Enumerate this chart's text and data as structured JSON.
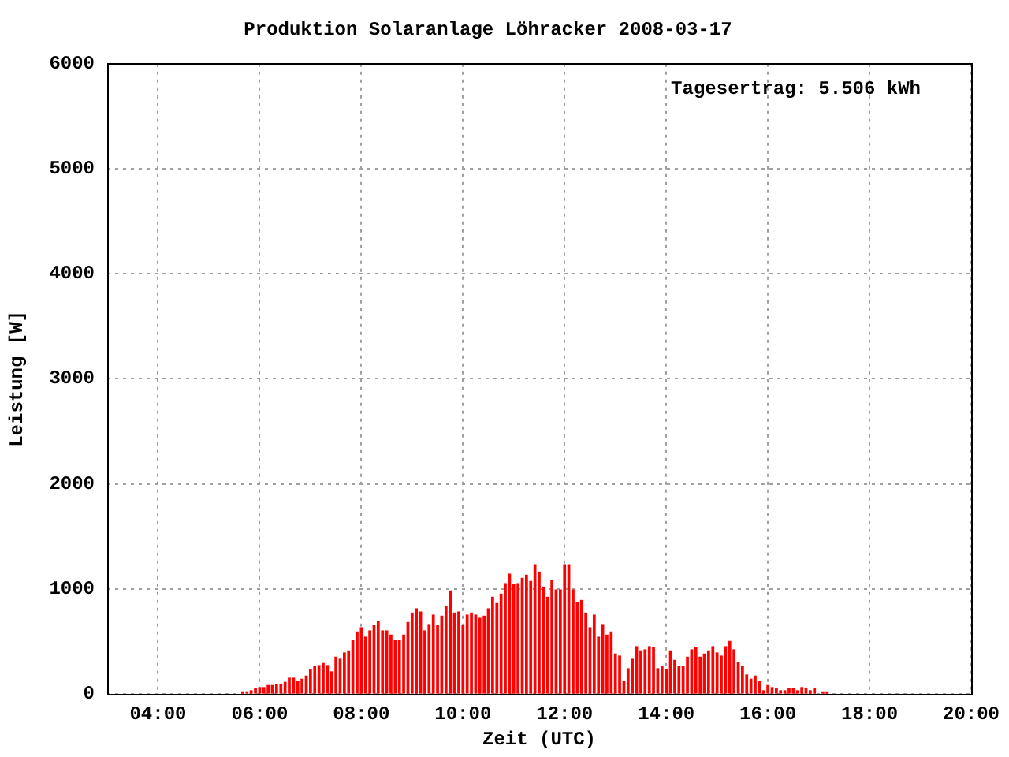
{
  "chart_data": {
    "type": "bar",
    "title": "Produktion Solaranlage Löhracker 2008-03-17",
    "xlabel": "Zeit (UTC)",
    "ylabel": "Leistung [W]",
    "annotations": [
      "Tagesertrag: 5.506 kWh"
    ],
    "x": [
      5.667,
      5.75,
      5.833,
      5.917,
      6,
      6.083,
      6.167,
      6.25,
      6.333,
      6.417,
      6.5,
      6.583,
      6.667,
      6.75,
      6.833,
      6.917,
      7,
      7.083,
      7.167,
      7.25,
      7.333,
      7.417,
      7.5,
      7.583,
      7.667,
      7.75,
      7.833,
      7.917,
      8,
      8.083,
      8.167,
      8.25,
      8.333,
      8.417,
      8.5,
      8.583,
      8.667,
      8.75,
      8.833,
      8.917,
      9,
      9.083,
      9.167,
      9.25,
      9.333,
      9.417,
      9.5,
      9.583,
      9.667,
      9.75,
      9.833,
      9.917,
      10,
      10.083,
      10.167,
      10.25,
      10.333,
      10.417,
      10.5,
      10.583,
      10.667,
      10.75,
      10.833,
      10.917,
      11,
      11.083,
      11.167,
      11.25,
      11.333,
      11.417,
      11.5,
      11.583,
      11.667,
      11.75,
      11.833,
      11.917,
      12,
      12.083,
      12.167,
      12.25,
      12.333,
      12.417,
      12.5,
      12.583,
      12.667,
      12.75,
      12.833,
      12.917,
      13,
      13.083,
      13.167,
      13.25,
      13.333,
      13.417,
      13.5,
      13.583,
      13.667,
      13.75,
      13.833,
      13.917,
      14,
      14.083,
      14.167,
      14.25,
      14.333,
      14.417,
      14.5,
      14.583,
      14.667,
      14.75,
      14.833,
      14.917,
      15,
      15.083,
      15.167,
      15.25,
      15.333,
      15.417,
      15.5,
      15.583,
      15.667,
      15.75,
      15.833,
      15.917,
      16,
      16.083,
      16.167,
      16.25,
      16.333,
      16.417,
      16.5,
      16.583,
      16.667,
      16.75,
      16.833,
      16.917,
      17,
      17.083,
      17.167
    ],
    "values": [
      20,
      20,
      30,
      50,
      60,
      60,
      80,
      80,
      90,
      90,
      110,
      150,
      150,
      120,
      140,
      170,
      230,
      260,
      270,
      290,
      270,
      210,
      350,
      330,
      390,
      410,
      510,
      590,
      630,
      540,
      600,
      650,
      690,
      600,
      600,
      560,
      510,
      510,
      560,
      680,
      770,
      810,
      780,
      600,
      660,
      750,
      650,
      740,
      830,
      980,
      770,
      780,
      650,
      750,
      770,
      750,
      720,
      740,
      810,
      920,
      860,
      950,
      1050,
      1140,
      1040,
      1050,
      1100,
      1130,
      1070,
      1230,
      1160,
      1010,
      920,
      1080,
      990,
      990,
      1230,
      1230,
      990,
      870,
      890,
      770,
      630,
      750,
      540,
      660,
      560,
      590,
      380,
      360,
      120,
      240,
      330,
      450,
      410,
      420,
      450,
      440,
      240,
      260,
      230,
      410,
      320,
      260,
      260,
      350,
      420,
      440,
      350,
      380,
      410,
      450,
      390,
      360,
      450,
      500,
      420,
      300,
      260,
      180,
      140,
      170,
      120,
      30,
      80,
      60,
      50,
      30,
      30,
      50,
      50,
      30,
      60,
      50,
      30,
      50,
      null,
      20,
      20
    ],
    "color": "#ff0000",
    "xlim": [
      3,
      20
    ],
    "xticks": [
      {
        "value": 4,
        "label": "04:00"
      },
      {
        "value": 6,
        "label": "06:00"
      },
      {
        "value": 8,
        "label": "08:00"
      },
      {
        "value": 10,
        "label": "10:00"
      },
      {
        "value": 12,
        "label": "12:00"
      },
      {
        "value": 14,
        "label": "14:00"
      },
      {
        "value": 16,
        "label": "16:00"
      },
      {
        "value": 18,
        "label": "18:00"
      },
      {
        "value": 20,
        "label": "20:00"
      }
    ],
    "ylim": [
      0,
      6000
    ],
    "yticks": [
      0,
      1000,
      2000,
      3000,
      4000,
      5000,
      6000
    ],
    "grid": true,
    "legend": false
  }
}
